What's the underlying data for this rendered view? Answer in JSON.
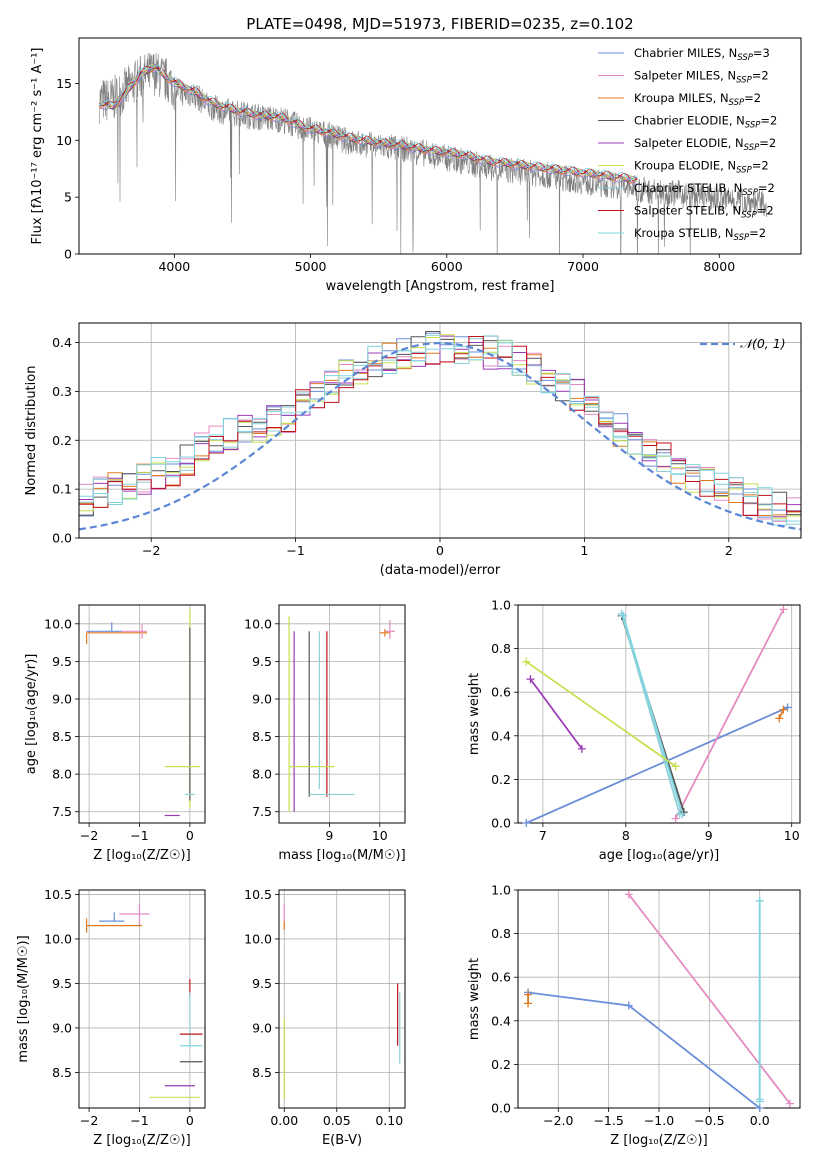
{
  "figure": {
    "title": "PLATE=0498, MJD=51973, FIBERID=0235, z=0.102"
  },
  "colors": {
    "chabrier_miles": "#6b8fd8",
    "salpeter_miles": "#e58bc0",
    "kroupa_miles": "#e07a20",
    "chabrier_elodie": "#555555",
    "salpeter_elodie": "#9c3bb8",
    "kroupa_elodie": "#c6e050",
    "chabrier_stelib": "#8ecfd8",
    "salpeter_stelib": "#c0101e",
    "kroupa_stelib": "#7fd6e0",
    "observed": "#808080",
    "grid": "#b0b0b0"
  },
  "chart_data": [
    {
      "id": "spectrum",
      "type": "line",
      "xlabel": "wavelength [Angstrom, rest frame]",
      "ylabel": "Flux [fλ10⁻¹⁷ erg cm⁻² s⁻¹ A⁻¹]",
      "xlim": [
        3300,
        8600
      ],
      "ylim": [
        0,
        19
      ],
      "xticks": [
        4000,
        5000,
        6000,
        7000,
        8000
      ],
      "yticks": [
        0,
        5,
        10,
        15
      ],
      "legend_position": "top-right",
      "legend": [
        {
          "main": "Chabrier MILES, N",
          "sub": "SSP",
          "tail": "=3",
          "color_key": "chabrier_miles"
        },
        {
          "main": "Salpeter MILES, N",
          "sub": "SSP",
          "tail": "=2",
          "color_key": "salpeter_miles"
        },
        {
          "main": "Kroupa MILES, N",
          "sub": "SSP",
          "tail": "=2",
          "color_key": "kroupa_miles"
        },
        {
          "main": "Chabrier ELODIE, N",
          "sub": "SSP",
          "tail": "=2",
          "color_key": "chabrier_elodie"
        },
        {
          "main": "Salpeter ELODIE, N",
          "sub": "SSP",
          "tail": "=2",
          "color_key": "salpeter_elodie"
        },
        {
          "main": "Kroupa ELODIE, N",
          "sub": "SSP",
          "tail": "=2",
          "color_key": "kroupa_elodie"
        },
        {
          "main": "Chabrier STELIB, N",
          "sub": "SSP",
          "tail": "=2",
          "color_key": "chabrier_stelib"
        },
        {
          "main": "Salpeter STELIB, N",
          "sub": "SSP",
          "tail": "=2",
          "color_key": "salpeter_stelib"
        },
        {
          "main": "Kroupa STELIB, N",
          "sub": "SSP",
          "tail": "=2",
          "color_key": "kroupa_stelib"
        }
      ],
      "observed_x": [
        3450,
        3550,
        3650,
        3750,
        3850,
        3950,
        4050,
        4150,
        4250,
        4350,
        4500,
        4650,
        4800,
        4950,
        5100,
        5300,
        5500,
        5700,
        5900,
        6100,
        6300,
        6500,
        6700,
        6900,
        7100,
        7300,
        7500,
        7700,
        7900,
        8100,
        8350
      ],
      "observed_y": [
        13.5,
        13.6,
        14.5,
        15.5,
        16.0,
        15.2,
        14.2,
        14.0,
        13.0,
        12.6,
        12.3,
        12.0,
        11.8,
        11.0,
        10.6,
        9.8,
        9.5,
        9.2,
        8.7,
        8.2,
        7.6,
        7.3,
        7.0,
        6.6,
        6.2,
        5.9,
        5.5,
        5.3,
        5.0,
        4.8,
        4.4
      ],
      "model_x": [
        3450,
        3550,
        3650,
        3750,
        3850,
        3950,
        4050,
        4150,
        4250,
        4350,
        4500,
        4650,
        4800,
        4950,
        5100,
        5300,
        5500,
        5700,
        5900,
        6100,
        6300,
        6500,
        6700,
        6900,
        7100,
        7300,
        7400
      ],
      "model_y": [
        13.2,
        13.0,
        14.3,
        15.8,
        16.5,
        15.5,
        14.8,
        14.3,
        13.5,
        13.0,
        12.5,
        12.2,
        12.0,
        11.2,
        10.8,
        10.2,
        9.8,
        9.5,
        9.1,
        8.8,
        8.2,
        7.9,
        7.6,
        7.3,
        7.0,
        6.7,
        6.5
      ]
    },
    {
      "id": "residuals",
      "type": "line",
      "xlabel": "(data-model)/error",
      "ylabel": "Normed distribution",
      "xlim": [
        -2.5,
        2.5
      ],
      "ylim": [
        0,
        0.44
      ],
      "xticks": [
        -2,
        -1,
        0,
        1,
        2
      ],
      "yticks": [
        0.0,
        0.1,
        0.2,
        0.3,
        0.4
      ],
      "legend_position": "top-right",
      "legend_label": "𝒩(0, 1)",
      "bin_width": 0.1,
      "envelope": [
        0.08,
        0.09,
        0.1,
        0.11,
        0.12,
        0.13,
        0.14,
        0.16,
        0.18,
        0.2,
        0.21,
        0.22,
        0.23,
        0.24,
        0.25,
        0.27,
        0.29,
        0.31,
        0.33,
        0.35,
        0.36,
        0.37,
        0.38,
        0.385,
        0.39,
        0.39,
        0.39,
        0.385,
        0.38,
        0.37,
        0.36,
        0.35,
        0.33,
        0.31,
        0.29,
        0.26,
        0.24,
        0.22,
        0.2,
        0.18,
        0.16,
        0.14,
        0.12,
        0.11,
        0.1,
        0.09,
        0.08,
        0.07,
        0.06,
        0.05
      ]
    },
    {
      "id": "age_vs_z",
      "type": "scatter",
      "xlabel": "Z [log₁₀(Z/Z☉)]",
      "ylabel": "age  [log₁₀(age/yr)]",
      "xlim": [
        -2.2,
        0.3
      ],
      "ylim": [
        7.35,
        10.25
      ],
      "xticks": [
        -2,
        -1,
        0
      ],
      "yticks": [
        7.5,
        8.0,
        8.5,
        9.0,
        9.5,
        10.0
      ],
      "points": [
        {
          "color_key": "kroupa_miles",
          "x": -2.05,
          "y": 9.88,
          "xerr": [
            0,
            1.2
          ],
          "yerr": [
            0.15,
            0
          ]
        },
        {
          "color_key": "chabrier_miles",
          "x": -1.55,
          "y": 9.9,
          "xerr": [
            0.5,
            0.2
          ],
          "yerr": [
            0,
            0.12
          ]
        },
        {
          "color_key": "salpeter_miles",
          "x": -0.95,
          "y": 9.9,
          "xerr": [
            0.4,
            0.1
          ],
          "yerr": [
            0.1,
            0.1
          ]
        },
        {
          "color_key": "kroupa_elodie",
          "x": 0.0,
          "y": 10.05,
          "xerr": [
            0,
            0
          ],
          "yerr": [
            2.5,
            0.15
          ]
        },
        {
          "color_key": "chabrier_elodie",
          "x": 0.0,
          "y": 9.95,
          "xerr": [
            0,
            0
          ],
          "yerr": [
            2.3,
            0
          ]
        },
        {
          "color_key": "kroupa_elodie",
          "x": 0.0,
          "y": 8.1,
          "xerr": [
            0.5,
            0.2
          ],
          "yerr": [
            0,
            0
          ]
        },
        {
          "color_key": "chabrier_stelib",
          "x": -0.1,
          "y": 7.73,
          "xerr": [
            0,
            0.2
          ],
          "yerr": [
            0,
            0
          ]
        },
        {
          "color_key": "salpeter_elodie",
          "x": -0.3,
          "y": 7.45,
          "xerr": [
            0.2,
            0.1
          ],
          "yerr": [
            0,
            0
          ]
        }
      ]
    },
    {
      "id": "age_vs_mass",
      "type": "scatter",
      "xlabel": "mass [log₁₀(M/M☉)]",
      "ylabel": "",
      "xlim": [
        8.0,
        10.5
      ],
      "ylim": [
        7.35,
        10.25
      ],
      "xticks": [
        9,
        10
      ],
      "yticks": [
        7.5,
        8.0,
        8.5,
        9.0,
        9.5,
        10.0
      ],
      "points": [
        {
          "color_key": "kroupa_elodie",
          "x": 8.2,
          "y": 10.1,
          "xerr": [
            0,
            0
          ],
          "yerr": [
            2.6,
            0
          ]
        },
        {
          "color_key": "salpeter_elodie",
          "x": 8.3,
          "y": 9.9,
          "xerr": [
            0,
            0
          ],
          "yerr": [
            2.4,
            0
          ]
        },
        {
          "color_key": "chabrier_elodie",
          "x": 8.6,
          "y": 9.9,
          "xerr": [
            0,
            0
          ],
          "yerr": [
            2.2,
            0
          ]
        },
        {
          "color_key": "chabrier_stelib",
          "x": 8.8,
          "y": 9.9,
          "xerr": [
            0,
            0
          ],
          "yerr": [
            2.1,
            0
          ]
        },
        {
          "color_key": "salpeter_stelib",
          "x": 8.95,
          "y": 9.9,
          "xerr": [
            0,
            0
          ],
          "yerr": [
            2.2,
            0
          ]
        },
        {
          "color_key": "kroupa_elodie",
          "x": 8.6,
          "y": 8.1,
          "xerr": [
            0.4,
            0.5
          ],
          "yerr": [
            0,
            0
          ]
        },
        {
          "color_key": "chabrier_stelib",
          "x": 9.0,
          "y": 7.73,
          "xerr": [
            0.4,
            0.5
          ],
          "yerr": [
            0,
            0
          ]
        },
        {
          "color_key": "salpeter_miles",
          "x": 10.2,
          "y": 9.9,
          "xerr": [
            0.1,
            0.1
          ],
          "yerr": [
            0.1,
            0.15
          ]
        },
        {
          "color_key": "kroupa_miles",
          "x": 10.1,
          "y": 9.88,
          "xerr": [
            0.1,
            0.1
          ],
          "yerr": [
            0.05,
            0.05
          ]
        }
      ]
    },
    {
      "id": "weight_vs_age",
      "type": "line",
      "xlabel": "age  [log₁₀(age/yr)]",
      "ylabel": "mass weight",
      "xlim": [
        6.7,
        10.1
      ],
      "ylim": [
        0,
        1
      ],
      "xticks": [
        7,
        8,
        9,
        10
      ],
      "yticks": [
        0.0,
        0.2,
        0.4,
        0.6,
        0.8,
        1.0
      ],
      "series": [
        {
          "color_key": "chabrier_miles",
          "x": [
            6.8,
            9.95
          ],
          "y": [
            0.0,
            0.53
          ]
        },
        {
          "color_key": "salpeter_miles",
          "x": [
            8.6,
            9.9
          ],
          "y": [
            0.02,
            0.98
          ]
        },
        {
          "color_key": "kroupa_miles",
          "x": [
            9.85,
            9.9
          ],
          "y": [
            0.48,
            0.52
          ]
        },
        {
          "color_key": "chabrier_elodie",
          "x": [
            7.95,
            8.7
          ],
          "y": [
            0.95,
            0.05
          ]
        },
        {
          "color_key": "chabrier_stelib",
          "x": [
            7.95,
            8.65
          ],
          "y": [
            0.96,
            0.04
          ]
        },
        {
          "color_key": "kroupa_stelib",
          "x": [
            7.97,
            8.68
          ],
          "y": [
            0.95,
            0.04
          ]
        },
        {
          "color_key": "salpeter_elodie",
          "x": [
            6.85,
            7.47
          ],
          "y": [
            0.66,
            0.34
          ]
        },
        {
          "color_key": "kroupa_elodie",
          "x": [
            6.8,
            8.6
          ],
          "y": [
            0.74,
            0.26
          ]
        }
      ]
    },
    {
      "id": "mass_vs_z",
      "type": "scatter",
      "xlabel": "Z [log₁₀(Z/Z☉)]",
      "ylabel": "mass [log₁₀(M/M☉)]",
      "xlim": [
        -2.2,
        0.3
      ],
      "ylim": [
        8.1,
        10.55
      ],
      "xticks": [
        -2,
        -1,
        0
      ],
      "yticks": [
        8.5,
        9.0,
        9.5,
        10.0,
        10.5
      ],
      "points": [
        {
          "color_key": "kroupa_miles",
          "x": -2.05,
          "y": 10.15,
          "xerr": [
            0,
            1.1
          ],
          "yerr": [
            0.08,
            0.08
          ]
        },
        {
          "color_key": "chabrier_miles",
          "x": -1.5,
          "y": 10.2,
          "xerr": [
            0.3,
            0.2
          ],
          "yerr": [
            0,
            0.1
          ]
        },
        {
          "color_key": "salpeter_miles",
          "x": -1.0,
          "y": 10.28,
          "xerr": [
            0.4,
            0.2
          ],
          "yerr": [
            0.12,
            0.12
          ]
        },
        {
          "color_key": "salpeter_stelib",
          "x": 0.0,
          "y": 9.45,
          "xerr": [
            0,
            0
          ],
          "yerr": [
            0.1,
            0.1
          ]
        },
        {
          "color_key": "chabrier_stelib",
          "x": 0.0,
          "y": 9.1,
          "xerr": [
            0,
            0
          ],
          "yerr": [
            0.3,
            0.3
          ]
        },
        {
          "color_key": "salpeter_stelib",
          "x": 0.0,
          "y": 8.93,
          "xerr": [
            0.2,
            0.25
          ],
          "yerr": [
            0,
            0
          ]
        },
        {
          "color_key": "kroupa_stelib",
          "x": 0.0,
          "y": 8.8,
          "xerr": [
            0.2,
            0.25
          ],
          "yerr": [
            0,
            0
          ]
        },
        {
          "color_key": "chabrier_elodie",
          "x": 0.0,
          "y": 8.62,
          "xerr": [
            0.2,
            0.25
          ],
          "yerr": [
            0,
            0
          ]
        },
        {
          "color_key": "salpeter_elodie",
          "x": -0.2,
          "y": 8.35,
          "xerr": [
            0.3,
            0.3
          ],
          "yerr": [
            0,
            0
          ]
        },
        {
          "color_key": "kroupa_elodie",
          "x": -0.3,
          "y": 8.22,
          "xerr": [
            0.5,
            0.5
          ],
          "yerr": [
            0,
            0
          ]
        }
      ]
    },
    {
      "id": "mass_vs_ebv",
      "type": "scatter",
      "xlabel": "E(B-V)",
      "ylabel": "",
      "xlim": [
        -0.005,
        0.115
      ],
      "ylim": [
        8.1,
        10.55
      ],
      "xticks": [
        0.0,
        0.05,
        0.1
      ],
      "yticks": [
        8.5,
        9.0,
        9.5,
        10.0,
        10.5
      ],
      "points": [
        {
          "color_key": "salpeter_miles",
          "x": 0.0,
          "y": 10.3,
          "xerr": [
            0,
            0
          ],
          "yerr": [
            0.1,
            0.1
          ]
        },
        {
          "color_key": "kroupa_miles",
          "x": 0.0,
          "y": 10.15,
          "xerr": [
            0,
            0
          ],
          "yerr": [
            0.05,
            0.05
          ]
        },
        {
          "color_key": "kroupa_elodie",
          "x": 0.0,
          "y": 8.65,
          "xerr": [
            0,
            0
          ],
          "yerr": [
            0.45,
            0.45
          ]
        },
        {
          "color_key": "salpeter_stelib",
          "x": 0.108,
          "y": 9.15,
          "xerr": [
            0,
            0
          ],
          "yerr": [
            0.35,
            0.35
          ]
        },
        {
          "color_key": "chabrier_stelib",
          "x": 0.11,
          "y": 9.0,
          "xerr": [
            0,
            0
          ],
          "yerr": [
            0.4,
            0.4
          ]
        }
      ]
    },
    {
      "id": "weight_vs_z",
      "type": "line",
      "xlabel": "Z [log₁₀(Z/Z☉)]",
      "ylabel": "mass weight",
      "xlim": [
        -2.4,
        0.4
      ],
      "ylim": [
        0,
        1
      ],
      "xticks": [
        -2.0,
        -1.5,
        -1.0,
        -0.5,
        0.0
      ],
      "yticks": [
        0.0,
        0.2,
        0.4,
        0.6,
        0.8,
        1.0
      ],
      "series": [
        {
          "color_key": "chabrier_miles",
          "x": [
            -2.3,
            -1.3,
            0.0
          ],
          "y": [
            0.53,
            0.47,
            0.0
          ]
        },
        {
          "color_key": "salpeter_miles",
          "x": [
            -1.3,
            0.3
          ],
          "y": [
            0.98,
            0.02
          ]
        },
        {
          "color_key": "kroupa_miles",
          "x": [
            -2.3,
            -2.3
          ],
          "y": [
            0.48,
            0.52
          ]
        },
        {
          "color_key": "chabrier_stelib",
          "x": [
            0.0,
            0.0
          ],
          "y": [
            0.95,
            0.04
          ]
        },
        {
          "color_key": "kroupa_stelib",
          "x": [
            0.0,
            0.0
          ],
          "y": [
            0.95,
            0.03
          ]
        }
      ]
    }
  ]
}
